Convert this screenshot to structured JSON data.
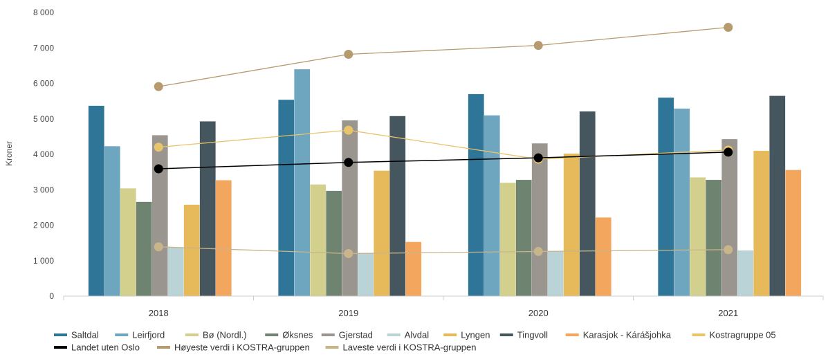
{
  "chart_data": {
    "type": "bar",
    "ylabel": "Kroner",
    "ylim": [
      0,
      8000
    ],
    "yticks": [
      0,
      1000,
      2000,
      3000,
      4000,
      5000,
      6000,
      7000,
      8000
    ],
    "ytick_labels": [
      "0",
      "1 000",
      "2 000",
      "3 000",
      "4 000",
      "5 000",
      "6 000",
      "7 000",
      "8 000"
    ],
    "categories": [
      "2018",
      "2019",
      "2020",
      "2021"
    ],
    "grid": false,
    "legend_position": "bottom",
    "bar_series": [
      {
        "name": "Saltdal",
        "color": "#2e7597",
        "values": [
          5370,
          5540,
          5700,
          5600
        ]
      },
      {
        "name": "Leirfjord",
        "color": "#6fa6bf",
        "values": [
          4230,
          6400,
          5100,
          5290
        ]
      },
      {
        "name": "Bø (Nordl.)",
        "color": "#d2d08c",
        "values": [
          3040,
          3150,
          3200,
          3350
        ]
      },
      {
        "name": "Øksnes",
        "color": "#6e8370",
        "values": [
          2660,
          2970,
          3280,
          3280
        ]
      },
      {
        "name": "Gjerstad",
        "color": "#9a958e",
        "values": [
          4540,
          4960,
          4310,
          4430
        ]
      },
      {
        "name": "Alvdal",
        "color": "#b9d3d7",
        "values": [
          1380,
          1210,
          1260,
          1290
        ]
      },
      {
        "name": "Lyngen",
        "color": "#e6b95a",
        "values": [
          2580,
          3540,
          4020,
          4100
        ]
      },
      {
        "name": "Tingvoll",
        "color": "#46565f",
        "values": [
          4930,
          5080,
          5210,
          5650
        ]
      },
      {
        "name": "Karasjok - Kárášjohka",
        "color": "#f2a65e",
        "values": [
          3270,
          1530,
          2220,
          3560
        ]
      }
    ],
    "line_series": [
      {
        "name": "Kostragruppe 05",
        "color": "#e8c46a",
        "values": [
          4200,
          4680,
          3860,
          4120
        ]
      },
      {
        "name": "Landet uten Oslo",
        "color": "#000000",
        "values": [
          3590,
          3770,
          3900,
          4060
        ]
      },
      {
        "name": "Høyeste verdi i KOSTRA-gruppen",
        "color": "#b79a6d",
        "values": [
          5910,
          6820,
          7070,
          7580
        ]
      },
      {
        "name": "Laveste verdi i KOSTRA-gruppen",
        "color": "#c8b58a",
        "values": [
          1390,
          1200,
          1260,
          1310
        ]
      }
    ],
    "legend_order": [
      "Saltdal",
      "Leirfjord",
      "Bø (Nordl.)",
      "Øksnes",
      "Gjerstad",
      "Alvdal",
      "Lyngen",
      "Tingvoll",
      "Karasjok - Kárášjohka",
      "Kostragruppe 05",
      "Landet uten Oslo",
      "Høyeste verdi i KOSTRA-gruppen",
      "Laveste verdi i KOSTRA-gruppen"
    ]
  }
}
